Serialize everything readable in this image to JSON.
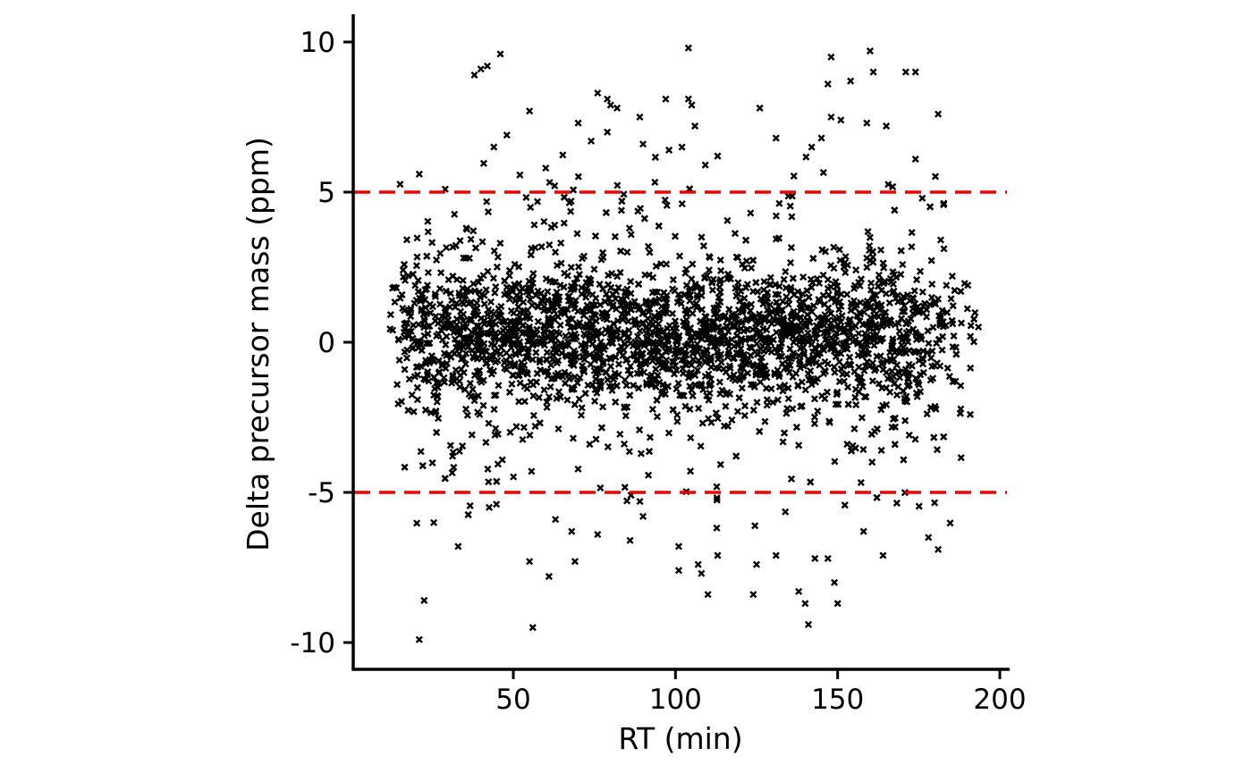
{
  "chart_data": {
    "type": "scatter",
    "xlabel": "RT (min)",
    "ylabel": "Delta precursor mass (ppm)",
    "xlim": [
      3,
      203
    ],
    "ylim": [
      -11,
      11
    ],
    "x_ticks": [
      50,
      100,
      150,
      200
    ],
    "y_ticks": [
      -10,
      -5,
      0,
      5,
      10
    ],
    "x_tick_labels": [
      "50",
      "100",
      "150",
      "200"
    ],
    "y_tick_labels": [
      "-10",
      "-5",
      "0",
      "5",
      "10"
    ],
    "reference_lines": [
      {
        "y": 5,
        "color": "#ee0000",
        "style": "dashed"
      },
      {
        "y": -5,
        "color": "#ee0000",
        "style": "dashed"
      }
    ],
    "marker": "x",
    "marker_color": "#000000",
    "grid": false,
    "legend": "none",
    "point_count_approx": 3000,
    "outlier_points": [
      {
        "x": 21,
        "y": 5.6
      },
      {
        "x": 21,
        "y": -9.9
      },
      {
        "x": 22.5,
        "y": -8.6
      },
      {
        "x": 29,
        "y": 5.1
      },
      {
        "x": 33,
        "y": -6.8
      },
      {
        "x": 38,
        "y": 8.9
      },
      {
        "x": 40,
        "y": 9.1
      },
      {
        "x": 42,
        "y": 9.2
      },
      {
        "x": 44,
        "y": 6.5
      },
      {
        "x": 46,
        "y": 9.6
      },
      {
        "x": 48,
        "y": 6.9
      },
      {
        "x": 55,
        "y": 7.7
      },
      {
        "x": 55,
        "y": -7.3
      },
      {
        "x": 56,
        "y": -9.5
      },
      {
        "x": 60,
        "y": 5.8
      },
      {
        "x": 61,
        "y": -7.8
      },
      {
        "x": 63,
        "y": -5.9
      },
      {
        "x": 68,
        "y": -6.3
      },
      {
        "x": 69,
        "y": -7.3
      },
      {
        "x": 70,
        "y": 7.3
      },
      {
        "x": 74,
        "y": 6.7
      },
      {
        "x": 76,
        "y": 8.3
      },
      {
        "x": 76,
        "y": -6.4
      },
      {
        "x": 79,
        "y": 8.1
      },
      {
        "x": 79,
        "y": 7.0
      },
      {
        "x": 80,
        "y": 7.9
      },
      {
        "x": 82,
        "y": 7.8
      },
      {
        "x": 86,
        "y": -6.6
      },
      {
        "x": 89,
        "y": 7.5
      },
      {
        "x": 90,
        "y": 6.6
      },
      {
        "x": 90,
        "y": -5.8
      },
      {
        "x": 97,
        "y": 8.1
      },
      {
        "x": 98,
        "y": 6.4
      },
      {
        "x": 101,
        "y": -6.8
      },
      {
        "x": 101,
        "y": -7.6
      },
      {
        "x": 102,
        "y": 6.5
      },
      {
        "x": 104,
        "y": 9.8
      },
      {
        "x": 104,
        "y": 8.1
      },
      {
        "x": 105,
        "y": 7.9
      },
      {
        "x": 106,
        "y": 7.2
      },
      {
        "x": 107,
        "y": -7.4
      },
      {
        "x": 108,
        "y": -7.7
      },
      {
        "x": 110,
        "y": -8.4
      },
      {
        "x": 113,
        "y": 6.2
      },
      {
        "x": 113,
        "y": -7.1
      },
      {
        "x": 124,
        "y": -8.4
      },
      {
        "x": 125,
        "y": -7.4
      },
      {
        "x": 126,
        "y": 7.8
      },
      {
        "x": 131,
        "y": 6.8
      },
      {
        "x": 131,
        "y": -7.1
      },
      {
        "x": 138,
        "y": -8.3
      },
      {
        "x": 140,
        "y": -8.7
      },
      {
        "x": 141,
        "y": -9.4
      },
      {
        "x": 142,
        "y": 6.5
      },
      {
        "x": 143,
        "y": -7.2
      },
      {
        "x": 145,
        "y": 6.8
      },
      {
        "x": 147,
        "y": 8.6
      },
      {
        "x": 147,
        "y": -7.2
      },
      {
        "x": 148,
        "y": 9.5
      },
      {
        "x": 148,
        "y": 7.5
      },
      {
        "x": 149,
        "y": -8.0
      },
      {
        "x": 150,
        "y": -8.7
      },
      {
        "x": 151,
        "y": 7.4
      },
      {
        "x": 154,
        "y": 8.7
      },
      {
        "x": 158,
        "y": -6.3
      },
      {
        "x": 159,
        "y": 7.3
      },
      {
        "x": 160,
        "y": 9.7
      },
      {
        "x": 161,
        "y": 9.0
      },
      {
        "x": 164,
        "y": -7.1
      },
      {
        "x": 165,
        "y": 7.2
      },
      {
        "x": 171,
        "y": 9.0
      },
      {
        "x": 174,
        "y": 9.0
      },
      {
        "x": 174,
        "y": 6.1
      },
      {
        "x": 178,
        "y": -6.5
      },
      {
        "x": 181,
        "y": 7.6
      },
      {
        "x": 181,
        "y": -6.9
      }
    ]
  }
}
